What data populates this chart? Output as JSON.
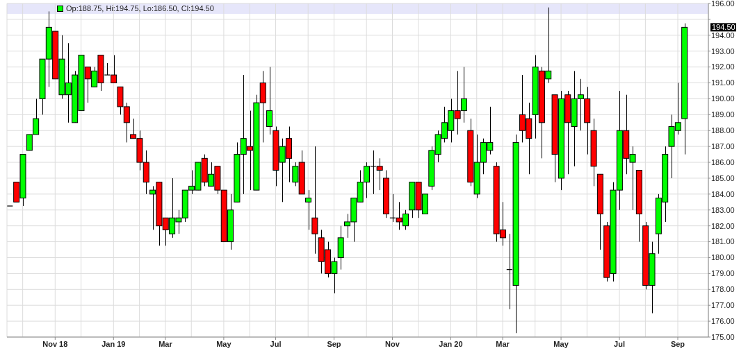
{
  "chart_data": {
    "type": "candlestick",
    "x": [
      "2018-09-17",
      "2018-09-24",
      "2018-10-01",
      "2018-10-08",
      "2018-10-15",
      "2018-10-22",
      "2018-10-29",
      "2018-11-05",
      "2018-11-12",
      "2018-11-19",
      "2018-11-26",
      "2018-12-03",
      "2018-12-10",
      "2018-12-17",
      "2018-12-24",
      "2018-12-31",
      "2019-01-07",
      "2019-01-14",
      "2019-01-21",
      "2019-01-28",
      "2019-02-04",
      "2019-02-11",
      "2019-02-18",
      "2019-02-25",
      "2019-03-04",
      "2019-03-11",
      "2019-03-18",
      "2019-03-25",
      "2019-04-01",
      "2019-04-08",
      "2019-04-15",
      "2019-04-22",
      "2019-04-29",
      "2019-05-06",
      "2019-05-13",
      "2019-05-20",
      "2019-05-27",
      "2019-06-03",
      "2019-06-10",
      "2019-06-17",
      "2019-06-24",
      "2019-07-01",
      "2019-07-08",
      "2019-07-15",
      "2019-07-22",
      "2019-07-29",
      "2019-08-05",
      "2019-08-12",
      "2019-08-19",
      "2019-08-26",
      "2019-09-02",
      "2019-09-09",
      "2019-09-16",
      "2019-09-23",
      "2019-09-30",
      "2019-10-07",
      "2019-10-14",
      "2019-10-21",
      "2019-10-28",
      "2019-11-04",
      "2019-11-11",
      "2019-11-18",
      "2019-11-25",
      "2019-12-02",
      "2019-12-09",
      "2019-12-16",
      "2019-12-23",
      "2019-12-30",
      "2020-01-06",
      "2020-01-13",
      "2020-01-20",
      "2020-01-27",
      "2020-02-03",
      "2020-02-10",
      "2020-02-17",
      "2020-02-24",
      "2020-03-02",
      "2020-03-09",
      "2020-03-16",
      "2020-03-23",
      "2020-03-30",
      "2020-04-06",
      "2020-04-13",
      "2020-04-20",
      "2020-04-27",
      "2020-05-04",
      "2020-05-11",
      "2020-05-18",
      "2020-05-25",
      "2020-06-01",
      "2020-06-08",
      "2020-06-15",
      "2020-06-22",
      "2020-06-29",
      "2020-07-06",
      "2020-07-13",
      "2020-07-20",
      "2020-07-27",
      "2020-08-03",
      "2020-08-10",
      "2020-08-17",
      "2020-08-24",
      "2020-08-31",
      "2020-09-07",
      "2020-09-14"
    ],
    "ohlc": [
      [
        183.25,
        183.25,
        183.25,
        183.25
      ],
      [
        184.75,
        184.75,
        183.5,
        183.5
      ],
      [
        183.75,
        186.5,
        183.25,
        186.5
      ],
      [
        186.75,
        187.75,
        186.75,
        187.75
      ],
      [
        187.75,
        190,
        187.75,
        188.75
      ],
      [
        190,
        192.5,
        189,
        192.5
      ],
      [
        192.5,
        195.5,
        190.75,
        194.5
      ],
      [
        194.25,
        194.25,
        191.25,
        191.25
      ],
      [
        190.25,
        194,
        190,
        192.5
      ],
      [
        190.25,
        193.5,
        188.5,
        191
      ],
      [
        188.5,
        191.75,
        188.5,
        191.5
      ],
      [
        189.25,
        192.75,
        189.25,
        192.75
      ],
      [
        192,
        192,
        189.75,
        191.25
      ],
      [
        190.75,
        192,
        190.75,
        191.75
      ],
      [
        192.75,
        192.75,
        190.5,
        191
      ],
      [
        191.5,
        192.25,
        191.5,
        191.5
      ],
      [
        191.5,
        192.75,
        191,
        191
      ],
      [
        190.75,
        190.75,
        189,
        189.5
      ],
      [
        189.5,
        189.75,
        187.25,
        188.5
      ],
      [
        187.75,
        188.75,
        187.5,
        187.5
      ],
      [
        187.5,
        188,
        185.5,
        186
      ],
      [
        186,
        186.75,
        184,
        184.75
      ],
      [
        184,
        184.5,
        181.75,
        184.25
      ],
      [
        184.75,
        184.75,
        180.75,
        182
      ],
      [
        182.5,
        182.5,
        180.75,
        181.75
      ],
      [
        181.5,
        185,
        181.25,
        182.5
      ],
      [
        182.25,
        183,
        181.5,
        182.5
      ],
      [
        182.5,
        184.25,
        182.25,
        184.25
      ],
      [
        184.25,
        185.5,
        184,
        184.5
      ],
      [
        184.25,
        186,
        184.25,
        186
      ],
      [
        186.25,
        186.5,
        184.5,
        184.75
      ],
      [
        184.5,
        186,
        184.5,
        185.25
      ],
      [
        185.75,
        185.75,
        184,
        184.25
      ],
      [
        184.25,
        184.25,
        181,
        181
      ],
      [
        181,
        184,
        180.5,
        183
      ],
      [
        183.5,
        187.25,
        183.5,
        186.5
      ],
      [
        186.5,
        191.5,
        184,
        187.5
      ],
      [
        187,
        189.25,
        184.25,
        186.75
      ],
      [
        184.25,
        190.25,
        184.25,
        189.75
      ],
      [
        191,
        191.75,
        187.25,
        189.75
      ],
      [
        188.25,
        192,
        187.75,
        189.25
      ],
      [
        188,
        188.25,
        184.5,
        185.5
      ],
      [
        186,
        187.5,
        183.5,
        187
      ],
      [
        187.5,
        188.25,
        184.75,
        186.25
      ],
      [
        184.75,
        186,
        184.5,
        185.75
      ],
      [
        186,
        186.75,
        184,
        184
      ],
      [
        183.5,
        184.25,
        181.75,
        183.75
      ],
      [
        182.5,
        187,
        180.25,
        181.5
      ],
      [
        181.25,
        181.75,
        179,
        179.75
      ],
      [
        180.5,
        181,
        178.75,
        179
      ],
      [
        179,
        180,
        177.75,
        179.75
      ],
      [
        180,
        182,
        179.25,
        181.25
      ],
      [
        182,
        182.75,
        181.25,
        182.25
      ],
      [
        182.25,
        183.75,
        181,
        183.75
      ],
      [
        183.5,
        185.5,
        183.5,
        184.75
      ],
      [
        184.75,
        186,
        183.75,
        185.75
      ],
      [
        185.75,
        186.75,
        184,
        185.75
      ],
      [
        185.75,
        186.25,
        184.25,
        185.5
      ],
      [
        185,
        185.5,
        182.5,
        182.75
      ],
      [
        182.5,
        184,
        182.25,
        182.5
      ],
      [
        182.5,
        183.5,
        181.75,
        182.25
      ],
      [
        182,
        183,
        181.75,
        182.75
      ],
      [
        183,
        184.75,
        182.5,
        184.75
      ],
      [
        184.75,
        184.75,
        182.5,
        183
      ],
      [
        182.75,
        184,
        182.75,
        184
      ],
      [
        184.5,
        187,
        184.25,
        186.75
      ],
      [
        186.5,
        188,
        186,
        187.75
      ],
      [
        187.5,
        189.5,
        187.25,
        188.5
      ],
      [
        188,
        190,
        187.25,
        189.25
      ],
      [
        189.25,
        191.75,
        187.75,
        188.75
      ],
      [
        189.25,
        192,
        188.5,
        190
      ],
      [
        188,
        188.75,
        184.5,
        184.75
      ],
      [
        184,
        187.75,
        183.75,
        186
      ],
      [
        186,
        187.5,
        185.25,
        187.25
      ],
      [
        186.75,
        189.5,
        186.5,
        187.25
      ],
      [
        185.75,
        186,
        181,
        181.5
      ],
      [
        181.75,
        183.5,
        180.75,
        181.25
      ],
      [
        179.25,
        181.5,
        176.75,
        179.25
      ],
      [
        178.25,
        187.75,
        175.25,
        187.25
      ],
      [
        189,
        191.5,
        187.25,
        188
      ],
      [
        188.75,
        189.75,
        185.25,
        187.5
      ],
      [
        189,
        192.75,
        187.5,
        192
      ],
      [
        191.75,
        192,
        186.25,
        188.5
      ],
      [
        191.25,
        195.75,
        191,
        191.75
      ],
      [
        190.25,
        190.25,
        184.75,
        186.5
      ],
      [
        185,
        190.5,
        184.25,
        190
      ],
      [
        190.25,
        190.5,
        185.25,
        188.5
      ],
      [
        188.25,
        191.75,
        185.75,
        190
      ],
      [
        190,
        191.25,
        188,
        190.25
      ],
      [
        190,
        190.75,
        186.5,
        188.5
      ],
      [
        188,
        188.75,
        184.5,
        185.75
      ],
      [
        185.25,
        185.25,
        180.5,
        182.75
      ],
      [
        182,
        182.25,
        178.5,
        178.75
      ],
      [
        179,
        184.75,
        178.5,
        184.25
      ],
      [
        184.25,
        190.5,
        183,
        188
      ],
      [
        188,
        190.25,
        185.25,
        186.25
      ],
      [
        186,
        187,
        183,
        186.5
      ],
      [
        185.5,
        185.5,
        181,
        182.75
      ],
      [
        182,
        182.25,
        178,
        178.25
      ],
      [
        178.25,
        181,
        176.5,
        180.25
      ],
      [
        181.5,
        184,
        180.25,
        183.75
      ],
      [
        183.5,
        187,
        182.25,
        186.5
      ],
      [
        187,
        189,
        185,
        188.25
      ],
      [
        188,
        191,
        187.75,
        188.5
      ],
      [
        188.75,
        194.75,
        186.5,
        194.5
      ]
    ],
    "colors": [
      "#000000",
      "#ff0000",
      "#00ff00",
      "#00ff00",
      "#00ff00",
      "#00ff00",
      "#00ff00",
      "#ff0000",
      "#00ff00",
      "#00ff00",
      "#00ff00",
      "#00ff00",
      "#ff0000",
      "#00ff00",
      "#ff0000",
      "#000000",
      "#ff0000",
      "#ff0000",
      "#ff0000",
      "#ff0000",
      "#ff0000",
      "#ff0000",
      "#00ff00",
      "#ff0000",
      "#ff0000",
      "#00ff00",
      "#00ff00",
      "#00ff00",
      "#00ff00",
      "#00ff00",
      "#ff0000",
      "#00ff00",
      "#ff0000",
      "#ff0000",
      "#00ff00",
      "#00ff00",
      "#00ff00",
      "#ff0000",
      "#00ff00",
      "#ff0000",
      "#00ff00",
      "#ff0000",
      "#00ff00",
      "#ff0000",
      "#00ff00",
      "#ff0000",
      "#00ff00",
      "#ff0000",
      "#ff0000",
      "#ff0000",
      "#00ff00",
      "#00ff00",
      "#00ff00",
      "#00ff00",
      "#00ff00",
      "#00ff00",
      "#000000",
      "#ff0000",
      "#ff0000",
      "#000000",
      "#ff0000",
      "#00ff00",
      "#00ff00",
      "#ff0000",
      "#00ff00",
      "#00ff00",
      "#00ff00",
      "#00ff00",
      "#00ff00",
      "#ff0000",
      "#00ff00",
      "#ff0000",
      "#00ff00",
      "#00ff00",
      "#00ff00",
      "#ff0000",
      "#ff0000",
      "#000000",
      "#00ff00",
      "#ff0000",
      "#ff0000",
      "#00ff00",
      "#ff0000",
      "#00ff00",
      "#ff0000",
      "#00ff00",
      "#ff0000",
      "#00ff00",
      "#00ff00",
      "#ff0000",
      "#ff0000",
      "#ff0000",
      "#ff0000",
      "#00ff00",
      "#00ff00",
      "#ff0000",
      "#00ff00",
      "#ff0000",
      "#ff0000",
      "#00ff00",
      "#00ff00",
      "#00ff00",
      "#00ff00",
      "#00ff00",
      "#00ff00"
    ],
    "xlim": [
      "2018-09-14",
      "2020-10-10"
    ],
    "xticks": [
      {
        "value": "2018-10-01",
        "label": null
      },
      {
        "value": "2018-11-05",
        "label": "Nov 18"
      },
      {
        "value": "2018-12-03",
        "label": null
      },
      {
        "value": "2019-01-07",
        "label": "Jan 19"
      },
      {
        "value": "2019-02-04",
        "label": null
      },
      {
        "value": "2019-03-04",
        "label": "Mar"
      },
      {
        "value": "2019-04-01",
        "label": null
      },
      {
        "value": "2019-05-06",
        "label": "May"
      },
      {
        "value": "2019-06-03",
        "label": null
      },
      {
        "value": "2019-07-01",
        "label": "Jul"
      },
      {
        "value": "2019-08-05",
        "label": null
      },
      {
        "value": "2019-09-02",
        "label": "Sep"
      },
      {
        "value": "2019-10-07",
        "label": null
      },
      {
        "value": "2019-11-04",
        "label": "Nov"
      },
      {
        "value": "2019-12-02",
        "label": null
      },
      {
        "value": "2020-01-06",
        "label": "Jan 20"
      },
      {
        "value": "2020-02-03",
        "label": null
      },
      {
        "value": "2020-03-02",
        "label": "Mar"
      },
      {
        "value": "2020-04-06",
        "label": null
      },
      {
        "value": "2020-05-04",
        "label": "May"
      },
      {
        "value": "2020-06-01",
        "label": null
      },
      {
        "value": "2020-07-06",
        "label": "Jul"
      },
      {
        "value": "2020-08-03",
        "label": null
      },
      {
        "value": "2020-09-07",
        "label": "Sep"
      }
    ],
    "ylim": [
      175,
      196
    ],
    "yticks": [
      {
        "value": 175,
        "label": "175.00"
      },
      {
        "value": 176,
        "label": "176.00"
      },
      {
        "value": 177,
        "label": "177.00"
      },
      {
        "value": 178,
        "label": "178.00"
      },
      {
        "value": 179,
        "label": "179.00"
      },
      {
        "value": 180,
        "label": "180.00"
      },
      {
        "value": 181,
        "label": "181.00"
      },
      {
        "value": 182,
        "label": "182.00"
      },
      {
        "value": 183,
        "label": "183.00"
      },
      {
        "value": 184,
        "label": "184.00"
      },
      {
        "value": 185,
        "label": "185.00"
      },
      {
        "value": 186,
        "label": "186.00"
      },
      {
        "value": 187,
        "label": "187.00"
      },
      {
        "value": 188,
        "label": "188.00"
      },
      {
        "value": 189,
        "label": "189.00"
      },
      {
        "value": 190,
        "label": "190.00"
      },
      {
        "value": 191,
        "label": "191.00"
      },
      {
        "value": 192,
        "label": "192.00"
      },
      {
        "value": 193,
        "label": "193.00"
      },
      {
        "value": 194,
        "label": "194.00"
      },
      {
        "value": 195,
        "label": null
      },
      {
        "value": 196,
        "label": "196.00"
      }
    ],
    "grid": true,
    "annotations": [
      "Op:188.75, Hi:194.75, Lo:186.50, Cl:194.50",
      "194.50"
    ]
  }
}
